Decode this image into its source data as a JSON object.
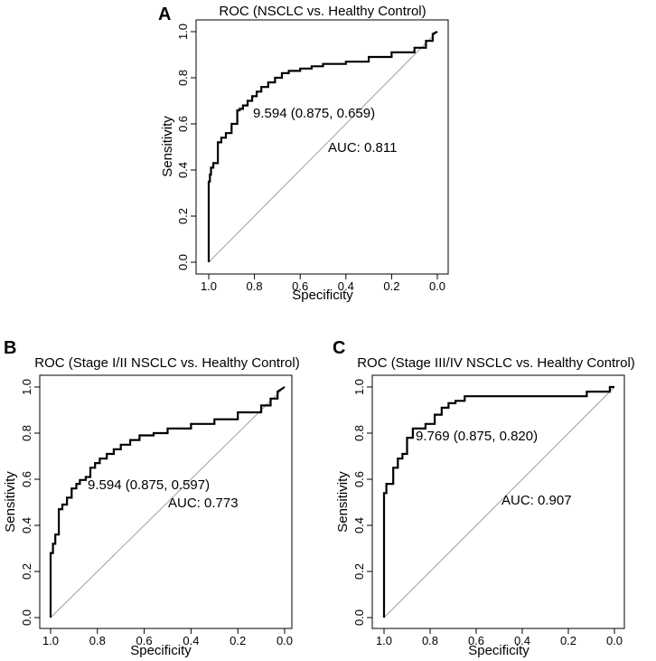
{
  "chart_data": [
    {
      "panel": "A",
      "type": "line",
      "title": "ROC (NSCLC vs. Healthy Control)",
      "xlabel": "Specificity",
      "ylabel": "Sensitivity",
      "xlim": [
        1.0,
        0.0
      ],
      "ylim": [
        0.0,
        1.0
      ],
      "xticks": [
        "1.0",
        "0.8",
        "0.6",
        "0.4",
        "0.2",
        "0.0"
      ],
      "yticks": [
        "0.0",
        "0.2",
        "0.4",
        "0.6",
        "0.8",
        "1.0"
      ],
      "threshold_label": "9.594 (0.875, 0.659)",
      "auc_label": "AUC: 0.811",
      "series": [
        {
          "name": "ROC curve",
          "x": [
            1.0,
            1.0,
            0.995,
            0.995,
            0.99,
            0.99,
            0.98,
            0.98,
            0.96,
            0.96,
            0.945,
            0.945,
            0.925,
            0.925,
            0.9,
            0.9,
            0.875,
            0.875,
            0.865,
            0.865,
            0.85,
            0.85,
            0.83,
            0.83,
            0.81,
            0.81,
            0.79,
            0.79,
            0.77,
            0.77,
            0.74,
            0.74,
            0.71,
            0.71,
            0.68,
            0.68,
            0.65,
            0.65,
            0.6,
            0.6,
            0.55,
            0.55,
            0.5,
            0.5,
            0.4,
            0.4,
            0.3,
            0.3,
            0.2,
            0.2,
            0.1,
            0.1,
            0.05,
            0.05,
            0.02,
            0.02,
            0.0
          ],
          "y": [
            0.0,
            0.35,
            0.35,
            0.38,
            0.38,
            0.41,
            0.41,
            0.43,
            0.43,
            0.52,
            0.52,
            0.54,
            0.54,
            0.56,
            0.56,
            0.6,
            0.6,
            0.659,
            0.659,
            0.665,
            0.665,
            0.68,
            0.68,
            0.7,
            0.7,
            0.72,
            0.72,
            0.74,
            0.74,
            0.76,
            0.76,
            0.78,
            0.78,
            0.8,
            0.8,
            0.82,
            0.82,
            0.83,
            0.83,
            0.84,
            0.84,
            0.85,
            0.85,
            0.86,
            0.86,
            0.87,
            0.87,
            0.89,
            0.89,
            0.91,
            0.91,
            0.93,
            0.93,
            0.96,
            0.96,
            0.99,
            1.0
          ]
        }
      ]
    },
    {
      "panel": "B",
      "type": "line",
      "title": "ROC (Stage I/II NSCLC vs. Healthy Control)",
      "xlabel": "Specificity",
      "ylabel": "Sensitivity",
      "xlim": [
        1.0,
        0.0
      ],
      "ylim": [
        0.0,
        1.0
      ],
      "xticks": [
        "1.0",
        "0.8",
        "0.6",
        "0.4",
        "0.2",
        "0.0"
      ],
      "yticks": [
        "0.0",
        "0.2",
        "0.4",
        "0.6",
        "0.8",
        "1.0"
      ],
      "threshold_label": "9.594 (0.875, 0.597)",
      "auc_label": "AUC: 0.773",
      "series": [
        {
          "name": "ROC curve",
          "x": [
            1.0,
            1.0,
            0.99,
            0.99,
            0.98,
            0.98,
            0.965,
            0.965,
            0.95,
            0.95,
            0.93,
            0.93,
            0.91,
            0.91,
            0.89,
            0.89,
            0.875,
            0.875,
            0.85,
            0.85,
            0.83,
            0.83,
            0.81,
            0.81,
            0.79,
            0.79,
            0.76,
            0.76,
            0.73,
            0.73,
            0.7,
            0.7,
            0.66,
            0.66,
            0.62,
            0.62,
            0.56,
            0.56,
            0.5,
            0.5,
            0.4,
            0.4,
            0.3,
            0.3,
            0.2,
            0.2,
            0.1,
            0.1,
            0.06,
            0.06,
            0.03,
            0.03,
            0.0
          ],
          "y": [
            0.0,
            0.28,
            0.28,
            0.32,
            0.32,
            0.36,
            0.36,
            0.47,
            0.47,
            0.49,
            0.49,
            0.52,
            0.52,
            0.56,
            0.56,
            0.58,
            0.58,
            0.597,
            0.597,
            0.61,
            0.61,
            0.65,
            0.65,
            0.67,
            0.67,
            0.69,
            0.69,
            0.71,
            0.71,
            0.73,
            0.73,
            0.75,
            0.75,
            0.77,
            0.77,
            0.79,
            0.79,
            0.8,
            0.8,
            0.82,
            0.82,
            0.84,
            0.84,
            0.86,
            0.86,
            0.89,
            0.89,
            0.92,
            0.92,
            0.95,
            0.95,
            0.98,
            1.0
          ]
        }
      ]
    },
    {
      "panel": "C",
      "type": "line",
      "title": "ROC (Stage III/IV NSCLC vs. Healthy Control)",
      "xlabel": "Specificity",
      "ylabel": "Sensitivity",
      "xlim": [
        1.0,
        0.0
      ],
      "ylim": [
        0.0,
        1.0
      ],
      "xticks": [
        "1.0",
        "0.8",
        "0.6",
        "0.4",
        "0.2",
        "0.0"
      ],
      "yticks": [
        "0.0",
        "0.2",
        "0.4",
        "0.6",
        "0.8",
        "1.0"
      ],
      "threshold_label": "9.769 (0.875, 0.820)",
      "auc_label": "AUC: 0.907",
      "series": [
        {
          "name": "ROC curve",
          "x": [
            1.0,
            1.0,
            0.99,
            0.99,
            0.96,
            0.96,
            0.94,
            0.94,
            0.92,
            0.92,
            0.9,
            0.9,
            0.875,
            0.875,
            0.82,
            0.82,
            0.78,
            0.78,
            0.75,
            0.75,
            0.72,
            0.72,
            0.69,
            0.69,
            0.65,
            0.65,
            0.12,
            0.12,
            0.02,
            0.02,
            0.0
          ],
          "y": [
            0.0,
            0.54,
            0.54,
            0.58,
            0.58,
            0.65,
            0.65,
            0.69,
            0.69,
            0.71,
            0.71,
            0.78,
            0.78,
            0.82,
            0.82,
            0.84,
            0.84,
            0.88,
            0.88,
            0.91,
            0.91,
            0.93,
            0.93,
            0.94,
            0.94,
            0.96,
            0.96,
            0.98,
            0.98,
            1.0,
            1.0
          ]
        }
      ]
    }
  ]
}
